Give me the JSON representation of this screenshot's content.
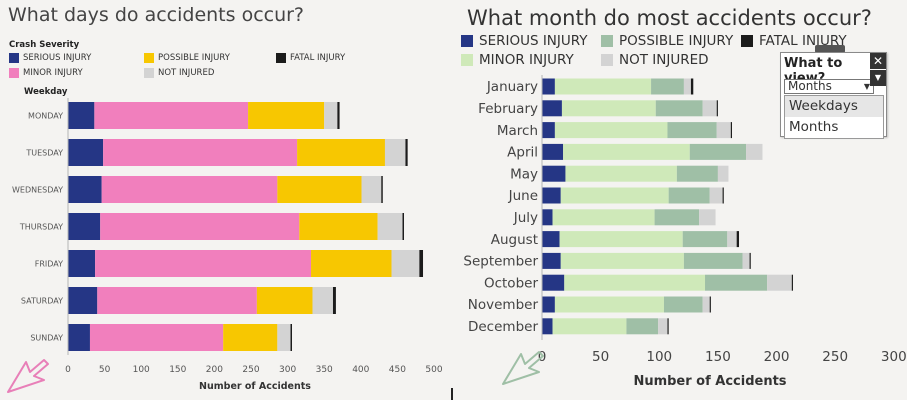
{
  "severities": [
    {
      "key": "serious",
      "name": "SERIOUS INJURY",
      "color": "#253685"
    },
    {
      "key": "minor",
      "name": "MINOR INJURY",
      "color": "#f17fbd"
    },
    {
      "key": "possible",
      "name": "POSSIBLE INJURY",
      "color": "#f7c701"
    },
    {
      "key": "not",
      "name": "NOT INJURED",
      "color": "#d3d3d3"
    },
    {
      "key": "fatal",
      "name": "FATAL INJURY",
      "color": "#1b1b1b"
    }
  ],
  "right_colors": {
    "serious": "#253685",
    "minor": "#cfe9b9",
    "possible": "#9fbfa6",
    "not": "#d3d3d3",
    "fatal": "#1b1b1b"
  },
  "left": {
    "title": "What days do accidents occur?",
    "legend_heading": "Crash Severity",
    "row_header": "Weekday"
  },
  "right": {
    "title": "What month do most accidents occur?"
  },
  "widget": {
    "label": "What to view?",
    "selected": "Months",
    "options": [
      "Weekdays",
      "Months"
    ],
    "close_glyph": "✕",
    "menu_glyph": "▼"
  },
  "chart_data": [
    {
      "type": "bar",
      "orientation": "horizontal",
      "stacked": true,
      "title": "What days do accidents occur?",
      "ylabel": "Weekday",
      "xlabel": "Number of Accidents",
      "xlim": [
        0,
        500
      ],
      "xticks": [
        0,
        50,
        100,
        150,
        200,
        250,
        300,
        350,
        400,
        450,
        500
      ],
      "grid": false,
      "legend": "top",
      "categories": [
        "MONDAY",
        "TUESDAY",
        "WEDNESDAY",
        "THURSDAY",
        "FRIDAY",
        "SATURDAY",
        "SUNDAY"
      ],
      "series": [
        {
          "name": "SERIOUS INJURY",
          "key": "serious",
          "values": [
            36,
            48,
            46,
            44,
            37,
            40,
            30
          ]
        },
        {
          "name": "MINOR INJURY",
          "key": "minor",
          "values": [
            210,
            265,
            240,
            272,
            295,
            218,
            182
          ]
        },
        {
          "name": "POSSIBLE INJURY",
          "key": "possible",
          "values": [
            104,
            120,
            115,
            107,
            110,
            76,
            74
          ]
        },
        {
          "name": "NOT INJURED",
          "key": "not",
          "values": [
            18,
            28,
            27,
            34,
            38,
            28,
            18
          ]
        },
        {
          "name": "FATAL INJURY",
          "key": "fatal",
          "values": [
            3,
            3,
            2,
            2,
            5,
            4,
            2
          ]
        }
      ]
    },
    {
      "type": "bar",
      "orientation": "horizontal",
      "stacked": true,
      "title": "What month do most accidents occur?",
      "xlabel": "Number of Accidents",
      "xlim": [
        0,
        330
      ],
      "xticks": [
        0,
        50,
        100,
        150,
        200,
        250,
        300
      ],
      "grid": false,
      "legend": "top",
      "categories": [
        "January",
        "February",
        "March",
        "April",
        "May",
        "June",
        "July",
        "August",
        "September",
        "October",
        "November",
        "December"
      ],
      "series": [
        {
          "name": "SERIOUS INJURY",
          "key": "serious",
          "values": [
            11,
            17,
            11,
            18,
            20,
            16,
            9,
            15,
            16,
            19,
            11,
            9
          ]
        },
        {
          "name": "MINOR INJURY",
          "key": "minor",
          "values": [
            82,
            80,
            96,
            108,
            95,
            92,
            87,
            105,
            105,
            120,
            93,
            63
          ]
        },
        {
          "name": "POSSIBLE INJURY",
          "key": "possible",
          "values": [
            28,
            40,
            42,
            48,
            35,
            35,
            38,
            38,
            50,
            53,
            33,
            27
          ]
        },
        {
          "name": "NOT INJURED",
          "key": "not",
          "values": [
            6,
            12,
            12,
            14,
            9,
            11,
            14,
            8,
            6,
            21,
            6,
            8
          ]
        },
        {
          "name": "FATAL INJURY",
          "key": "fatal",
          "values": [
            2,
            1,
            1,
            0,
            0,
            1,
            0,
            2,
            1,
            1,
            1,
            1
          ]
        }
      ]
    }
  ]
}
